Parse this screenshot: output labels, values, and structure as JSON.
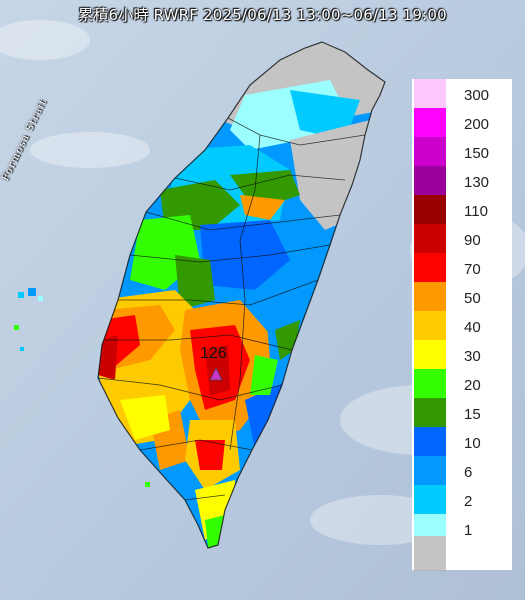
{
  "title": "累積6小時 RWRF 2025/06/13 13:00~06/13 19:00",
  "strait_label": "Formosa Strait",
  "peak": {
    "value": "126",
    "marker_color": "#cc33cc"
  },
  "legend": [
    {
      "label": "300",
      "color": "#fdc9fc"
    },
    {
      "label": "200",
      "color": "#fd02fc"
    },
    {
      "label": "150",
      "color": "#cc00cc"
    },
    {
      "label": "130",
      "color": "#9a009c"
    },
    {
      "label": "110",
      "color": "#990000"
    },
    {
      "label": "90",
      "color": "#cc0000"
    },
    {
      "label": "70",
      "color": "#fe0200"
    },
    {
      "label": "50",
      "color": "#fe9900"
    },
    {
      "label": "40",
      "color": "#fdcb00"
    },
    {
      "label": "30",
      "color": "#fffe00"
    },
    {
      "label": "20",
      "color": "#33ff02"
    },
    {
      "label": "15",
      "color": "#329a00"
    },
    {
      "label": "10",
      "color": "#0066ff"
    },
    {
      "label": "6",
      "color": "#0199fd"
    },
    {
      "label": "2",
      "color": "#01cbfe"
    },
    {
      "label": "1",
      "color": "#9afffe"
    },
    {
      "label": "",
      "color": "#c4c4c4"
    }
  ]
}
